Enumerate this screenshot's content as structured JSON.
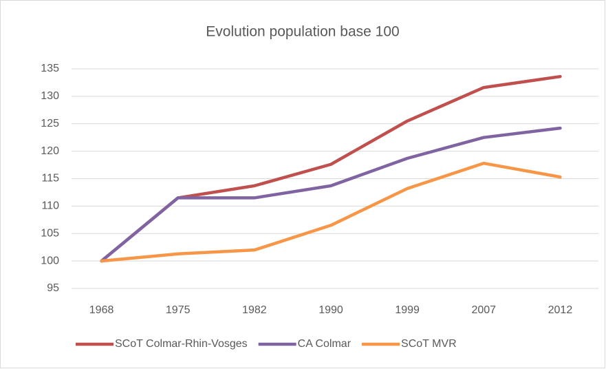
{
  "chart_data": {
    "type": "line",
    "title": "Evolution population base 100",
    "categories": [
      "1968",
      "1975",
      "1982",
      "1990",
      "1999",
      "2007",
      "2012"
    ],
    "series": [
      {
        "name": "SCoT Colmar-Rhin-Vosges",
        "color": "#c0504d",
        "values": [
          100,
          111.5,
          113.7,
          117.6,
          125.5,
          131.6,
          133.6
        ]
      },
      {
        "name": "CA Colmar",
        "color": "#8064a2",
        "values": [
          100,
          111.5,
          111.5,
          113.7,
          118.7,
          122.5,
          124.2
        ]
      },
      {
        "name": "SCoT MVR",
        "color": "#f79646",
        "values": [
          100,
          101.3,
          102.0,
          106.5,
          113.2,
          117.8,
          115.3
        ]
      }
    ],
    "ylim": [
      95,
      135
    ],
    "yticks": [
      95,
      100,
      105,
      110,
      115,
      120,
      125,
      130,
      135
    ],
    "grid": true,
    "legend": "bottom"
  }
}
